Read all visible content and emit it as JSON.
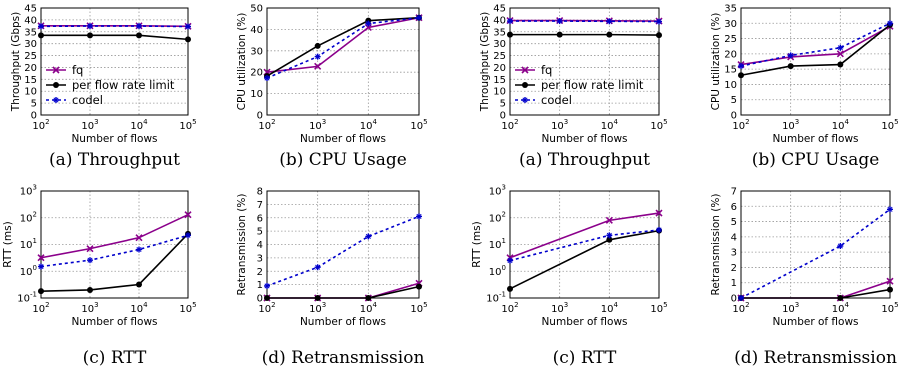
{
  "colors": {
    "fq": "#8b008b",
    "rate": "#000000",
    "codel": "#0000cc"
  },
  "chart_data": [
    {
      "type": "line",
      "xlog": true,
      "ylog": false,
      "caption": "(a) Throughput",
      "xlabel": "Number of flows",
      "ylabel": "Throughput (Gbps)",
      "xlim": [
        100,
        100000
      ],
      "ylim": [
        0,
        45
      ],
      "xticks": [
        [
          "10",
          "2"
        ],
        [
          "10",
          "3"
        ],
        [
          "10",
          "4"
        ],
        [
          "10",
          "5"
        ]
      ],
      "yticks": [
        "0",
        "5",
        "10",
        "15",
        "20",
        "25",
        "30",
        "35",
        "40",
        "45"
      ],
      "x": [
        100,
        1000,
        10000,
        100000
      ],
      "legend": [
        "fq",
        "per flow rate limit",
        "codel"
      ],
      "series": [
        {
          "name": "fq",
          "key": "fq",
          "values": [
            37.5,
            37.5,
            37.5,
            37.3
          ]
        },
        {
          "name": "per flow rate limit",
          "key": "rate",
          "values": [
            33.5,
            33.5,
            33.5,
            31.8
          ]
        },
        {
          "name": "codel",
          "key": "codel",
          "values": [
            37.3,
            37.4,
            37.4,
            37.2
          ]
        }
      ]
    },
    {
      "type": "line",
      "xlog": true,
      "ylog": false,
      "caption": "(b) CPU Usage",
      "xlabel": "Number of flows",
      "ylabel": "CPU utilization (%)",
      "xlim": [
        100,
        100000
      ],
      "ylim": [
        0,
        55
      ],
      "xticks": [
        [
          "10",
          "2"
        ],
        [
          "10",
          "3"
        ],
        [
          "10",
          "4"
        ],
        [
          "10",
          "5"
        ]
      ],
      "yticks": [
        "0",
        "10",
        "20",
        "30",
        "40",
        "50"
      ],
      "x": [
        100,
        1000,
        10000,
        100000
      ],
      "series": [
        {
          "key": "fq",
          "values": [
            22,
            25,
            45,
            50
          ]
        },
        {
          "key": "rate",
          "values": [
            20,
            35.5,
            48.5,
            50
          ]
        },
        {
          "key": "codel",
          "values": [
            19,
            30,
            47,
            50
          ]
        }
      ]
    },
    {
      "type": "line",
      "xlog": true,
      "ylog": false,
      "caption": "(a) Throughput",
      "xlabel": "Number of flows",
      "ylabel": "Throughput (Gbps)",
      "xlim": [
        100,
        100000
      ],
      "ylim": [
        0,
        45
      ],
      "xticks": [
        [
          "10",
          "2"
        ],
        [
          "10",
          "3"
        ],
        [
          "10",
          "4"
        ],
        [
          "10",
          "5"
        ]
      ],
      "yticks": [
        "0",
        "5",
        "10",
        "15",
        "20",
        "25",
        "30",
        "35",
        "40",
        "45"
      ],
      "x": [
        100,
        1000,
        10000,
        100000
      ],
      "legend": [
        "fq",
        "per flow rate limit",
        "codel"
      ],
      "series": [
        {
          "name": "fq",
          "key": "fq",
          "values": [
            39.7,
            39.7,
            39.6,
            39.5
          ]
        },
        {
          "name": "per flow rate limit",
          "key": "rate",
          "values": [
            33.8,
            33.8,
            33.8,
            33.6
          ]
        },
        {
          "name": "codel",
          "key": "codel",
          "values": [
            39.5,
            39.5,
            39.4,
            39.3
          ]
        }
      ]
    },
    {
      "type": "line",
      "xlog": true,
      "ylog": false,
      "caption": "(b) CPU Usage",
      "xlabel": "Number of flows",
      "ylabel": "CPU utilization (%)",
      "xlim": [
        100,
        100000
      ],
      "ylim": [
        0,
        35
      ],
      "xticks": [
        [
          "10",
          "2"
        ],
        [
          "10",
          "3"
        ],
        [
          "10",
          "4"
        ],
        [
          "10",
          "5"
        ]
      ],
      "yticks": [
        "0",
        "5",
        "10",
        "15",
        "20",
        "25",
        "30",
        "35"
      ],
      "x": [
        100,
        1000,
        10000,
        100000
      ],
      "series": [
        {
          "key": "fq",
          "values": [
            16.5,
            19,
            20,
            29
          ]
        },
        {
          "key": "rate",
          "values": [
            13,
            16,
            16.5,
            29.5
          ]
        },
        {
          "key": "codel",
          "values": [
            16,
            19.5,
            22,
            30
          ]
        }
      ]
    },
    {
      "type": "line",
      "xlog": true,
      "ylog": true,
      "caption": "(c) RTT",
      "xlabel": "Number of flows",
      "ylabel": "RTT (ms)",
      "xlim": [
        100,
        100000
      ],
      "ylim": [
        0.1,
        1000
      ],
      "xticks": [
        [
          "10",
          "2"
        ],
        [
          "10",
          "3"
        ],
        [
          "10",
          "4"
        ],
        [
          "10",
          "5"
        ]
      ],
      "yticks": [
        [
          "10",
          "-1"
        ],
        [
          "10",
          "0"
        ],
        [
          "10",
          "1"
        ],
        [
          "10",
          "2"
        ],
        [
          "10",
          "3"
        ]
      ],
      "x": [
        100,
        1000,
        10000,
        100000
      ],
      "series": [
        {
          "key": "fq",
          "values": [
            3.2,
            7,
            18,
            130
          ]
        },
        {
          "key": "rate",
          "values": [
            0.18,
            0.2,
            0.32,
            25
          ]
        },
        {
          "key": "codel",
          "values": [
            1.5,
            2.6,
            6.5,
            22
          ]
        }
      ]
    },
    {
      "type": "line",
      "xlog": true,
      "ylog": false,
      "caption": "(d) Retransmission",
      "xlabel": "Number of flows",
      "ylabel": "Retransmission (%)",
      "xlim": [
        100,
        100000
      ],
      "ylim": [
        0,
        8
      ],
      "xticks": [
        [
          "10",
          "2"
        ],
        [
          "10",
          "3"
        ],
        [
          "10",
          "4"
        ],
        [
          "10",
          "5"
        ]
      ],
      "yticks": [
        "0",
        "1",
        "2",
        "3",
        "4",
        "5",
        "6",
        "7",
        "8"
      ],
      "x": [
        100,
        1000,
        10000,
        100000
      ],
      "series": [
        {
          "key": "fq",
          "values": [
            0,
            0,
            0,
            1.1
          ]
        },
        {
          "key": "rate",
          "values": [
            0,
            0,
            0,
            0.85
          ]
        },
        {
          "key": "codel",
          "values": [
            0.9,
            2.3,
            4.6,
            6.1
          ]
        }
      ]
    },
    {
      "type": "line",
      "xlog": true,
      "ylog": true,
      "caption": "(c) RTT",
      "xlabel": "Number of flows",
      "ylabel": "RTT (ms)",
      "xlim": [
        100,
        100000
      ],
      "ylim": [
        0.1,
        1000
      ],
      "xticks": [
        [
          "10",
          "2"
        ],
        [
          "10",
          "3"
        ],
        [
          "10",
          "4"
        ],
        [
          "10",
          "5"
        ]
      ],
      "yticks": [
        [
          "10",
          "-1"
        ],
        [
          "10",
          "0"
        ],
        [
          "10",
          "1"
        ],
        [
          "10",
          "2"
        ],
        [
          "10",
          "3"
        ]
      ],
      "x": [
        100,
        10000,
        100000
      ],
      "series": [
        {
          "key": "fq",
          "values": [
            3.2,
            80,
            150
          ]
        },
        {
          "key": "rate",
          "values": [
            0.22,
            15,
            33
          ]
        },
        {
          "key": "codel",
          "values": [
            2.5,
            22,
            35
          ]
        }
      ]
    },
    {
      "type": "line",
      "xlog": true,
      "ylog": false,
      "caption": "(d) Retransmission",
      "xlabel": "Number of flows",
      "ylabel": "Retransmission (%)",
      "xlim": [
        100,
        100000
      ],
      "ylim": [
        0,
        7
      ],
      "xticks": [
        [
          "10",
          "2"
        ],
        [
          "10",
          "3"
        ],
        [
          "10",
          "4"
        ],
        [
          "10",
          "5"
        ]
      ],
      "yticks": [
        "0",
        "1",
        "2",
        "3",
        "4",
        "5",
        "6",
        "7"
      ],
      "x": [
        100,
        10000,
        100000
      ],
      "series": [
        {
          "key": "fq",
          "values": [
            0,
            0,
            1.1
          ]
        },
        {
          "key": "rate",
          "values": [
            0,
            0,
            0.55
          ]
        },
        {
          "key": "codel",
          "values": [
            0,
            3.4,
            5.8
          ]
        }
      ]
    }
  ]
}
